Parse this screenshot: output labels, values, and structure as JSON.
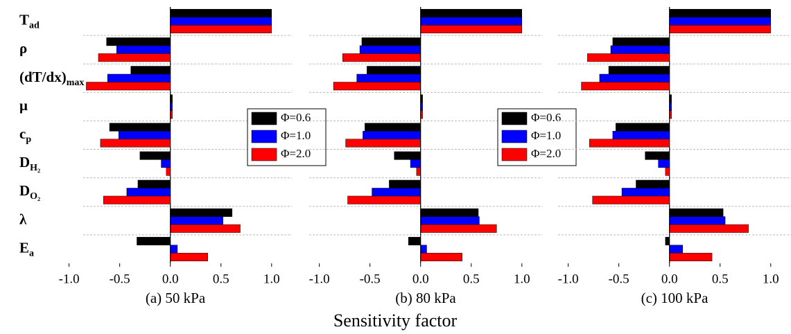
{
  "categories": [
    {
      "text": "T",
      "sub": "ad"
    },
    {
      "text": "ρ"
    },
    {
      "text": "(dT/dx)",
      "sub": "max"
    },
    {
      "text": "μ"
    },
    {
      "text": "c",
      "sub": "p"
    },
    {
      "text": "D",
      "sub": "H₂"
    },
    {
      "text": "D",
      "sub": "O₂"
    },
    {
      "text": "λ"
    },
    {
      "text": "E",
      "sub": "a"
    }
  ],
  "xlabel": "Sensitivity factor",
  "chart_data": [
    {
      "type": "hbar",
      "title": "(a) 50 kPa",
      "legend": "right",
      "xlim": [
        -1.1,
        1.2
      ],
      "xticks": [
        {
          "value": -1,
          "label": "-1.0"
        },
        -0.5,
        {
          "value": 0,
          "label": "0.0"
        },
        0.5,
        {
          "value": 1,
          "label": "1.0"
        }
      ],
      "series": [
        {
          "name": "Φ=0.6",
          "color": "#000000",
          "values": [
            1.0,
            -0.63,
            -0.39,
            0.02,
            -0.6,
            -0.3,
            -0.32,
            0.61,
            -0.33
          ]
        },
        {
          "name": "Φ=1.0",
          "color": "#0000ff",
          "values": [
            1.0,
            -0.53,
            -0.62,
            0.02,
            -0.51,
            -0.09,
            -0.43,
            0.52,
            0.07
          ]
        },
        {
          "name": "Φ=2.0",
          "color": "#ff0000",
          "values": [
            1.0,
            -0.71,
            -0.83,
            0.02,
            -0.69,
            -0.04,
            -0.66,
            0.69,
            0.37
          ]
        }
      ]
    },
    {
      "type": "hbar",
      "title": "(b) 80 kPa",
      "legend": "right",
      "xlim": [
        -1.1,
        1.2
      ],
      "xticks": [
        {
          "value": -1,
          "label": "-1.0"
        },
        -0.5,
        {
          "value": 0,
          "label": "0.0"
        },
        0.5,
        {
          "value": 1,
          "label": "1.0"
        }
      ],
      "series": [
        {
          "name": "Φ=0.6",
          "color": "#000000",
          "values": [
            1.0,
            -0.58,
            -0.53,
            0.02,
            -0.55,
            -0.26,
            -0.31,
            0.57,
            -0.12
          ]
        },
        {
          "name": "Φ=1.0",
          "color": "#0000ff",
          "values": [
            1.0,
            -0.6,
            -0.63,
            0.02,
            -0.57,
            -0.1,
            -0.48,
            0.58,
            0.06
          ]
        },
        {
          "name": "Φ=2.0",
          "color": "#ff0000",
          "values": [
            1.0,
            -0.77,
            -0.86,
            0.02,
            -0.74,
            -0.04,
            -0.72,
            0.75,
            0.41
          ]
        }
      ]
    },
    {
      "type": "hbar",
      "title": "(c) 100 kPa",
      "xlim": [
        -1.1,
        1.2
      ],
      "xticks": [
        {
          "value": -1,
          "label": "-1.0"
        },
        -0.5,
        {
          "value": 0,
          "label": "0.0"
        },
        0.5,
        {
          "value": 1,
          "label": "1.0"
        }
      ],
      "series": [
        {
          "color": "#000000",
          "values": [
            1.0,
            -0.56,
            -0.6,
            0.02,
            -0.53,
            -0.24,
            -0.33,
            0.53,
            -0.04
          ]
        },
        {
          "color": "#0000ff",
          "values": [
            1.0,
            -0.58,
            -0.69,
            0.02,
            -0.56,
            -0.11,
            -0.47,
            0.55,
            0.13
          ]
        },
        {
          "color": "#ff0000",
          "values": [
            1.0,
            -0.81,
            -0.87,
            0.02,
            -0.79,
            -0.04,
            -0.76,
            0.78,
            0.42
          ]
        }
      ]
    }
  ]
}
